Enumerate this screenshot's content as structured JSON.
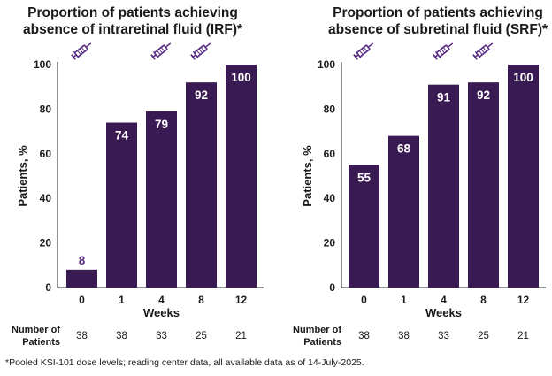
{
  "colors": {
    "bar": "#3a1a52",
    "label_inside": "#ffffff",
    "label_outside": "#5b2e86",
    "axis": "#222222"
  },
  "footnote": "*Pooled KSI-101 dose levels; reading center data, all available data as of 14-July-2025.",
  "chart_data": [
    {
      "type": "bar",
      "title_lines": [
        "Proportion of patients achieving",
        "absence of intraretinal fluid (IRF)*"
      ],
      "categories": [
        "0",
        "1",
        "4",
        "8",
        "12"
      ],
      "values": [
        8,
        74,
        79,
        92,
        100
      ],
      "value_labels": [
        "8",
        "74",
        "79",
        "92",
        "100"
      ],
      "xlabel": "Weeks",
      "ylabel": "Patients, %",
      "ylim": [
        0,
        100
      ],
      "yticks": [
        "0",
        "20",
        "40",
        "60",
        "80",
        "100"
      ],
      "dose_markers": [
        "0",
        "4",
        "8"
      ],
      "patients_label_lines": [
        "Number of",
        "Patients"
      ],
      "patients_counts": [
        "38",
        "38",
        "33",
        "25",
        "21"
      ],
      "marker_icon": "syringe-icon"
    },
    {
      "type": "bar",
      "title_lines": [
        "Proportion of patients achieving",
        "absence of subretinal fluid (SRF)*"
      ],
      "categories": [
        "0",
        "1",
        "4",
        "8",
        "12"
      ],
      "values": [
        55,
        68,
        91,
        92,
        100
      ],
      "value_labels": [
        "55",
        "68",
        "91",
        "92",
        "100"
      ],
      "xlabel": "Weeks",
      "ylabel": "Patients, %",
      "ylim": [
        0,
        100
      ],
      "yticks": [
        "0",
        "20",
        "40",
        "60",
        "80",
        "100"
      ],
      "dose_markers": [
        "0",
        "4",
        "8"
      ],
      "patients_label_lines": [
        "Number of",
        "Patients"
      ],
      "patients_counts": [
        "38",
        "38",
        "33",
        "25",
        "21"
      ],
      "marker_icon": "syringe-icon"
    }
  ]
}
